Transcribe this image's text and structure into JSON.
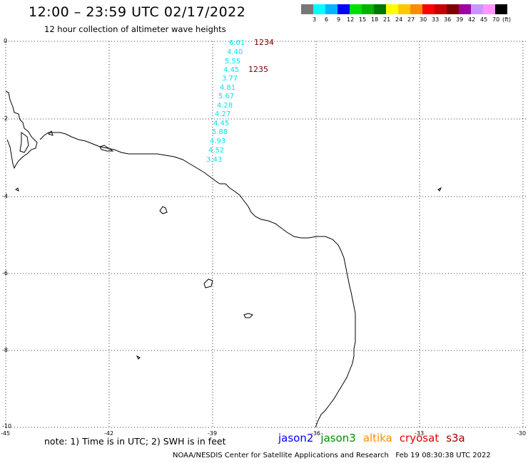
{
  "header": {
    "title": "12:00 – 23:59 UTC 02/17/2022",
    "subtitle": "12 hour collection of altimeter wave heights"
  },
  "legend": {
    "colors": [
      "#787878",
      "#00ffff",
      "#00b4ff",
      "#0000ff",
      "#00e000",
      "#00b400",
      "#007800",
      "#ffff00",
      "#ffc800",
      "#ff8c00",
      "#ff0000",
      "#c80000",
      "#7f0000",
      "#a000a0",
      "#c896ff",
      "#ff96ff",
      "#000000"
    ],
    "labels": [
      "3",
      "6",
      "9",
      "12",
      "15",
      "18",
      "21",
      "24",
      "27",
      "30",
      "33",
      "36",
      "39",
      "42",
      "45",
      "70"
    ],
    "unit": "(ft)"
  },
  "map": {
    "lat_ticks": [
      "0",
      "-2",
      "-4",
      "-6",
      "-8",
      "-10"
    ],
    "lon_ticks": [
      "-45",
      "-42",
      "-39",
      "-36",
      "-33",
      "-30"
    ],
    "swh_color": "#00e5f0",
    "pass_color": "#7a0000",
    "swh_values": [
      "6.01",
      "4.40",
      "5.55",
      "4.45",
      "3.77",
      "4.81",
      "5.67",
      "4.28",
      "4.27",
      "4.45",
      "5.88",
      "4.93",
      "4.52",
      "3.43"
    ],
    "pass_labels": [
      "1234",
      "1235"
    ]
  },
  "note": "note: 1) Time is in UTC; 2) SWH is in feet",
  "satellites": [
    {
      "name": "jason2",
      "color": "#0000ff"
    },
    {
      "name": "jason3",
      "color": "#008c00"
    },
    {
      "name": "altika",
      "color": "#ff8c00"
    },
    {
      "name": "cryosat",
      "color": "#e00000"
    },
    {
      "name": "s3a",
      "color": "#a00000"
    }
  ],
  "footer": {
    "credit": "NOAA/NESDIS Center for Satellite Applications and Research",
    "timestamp": "Feb 19 08:30:38 UTC 2022"
  }
}
